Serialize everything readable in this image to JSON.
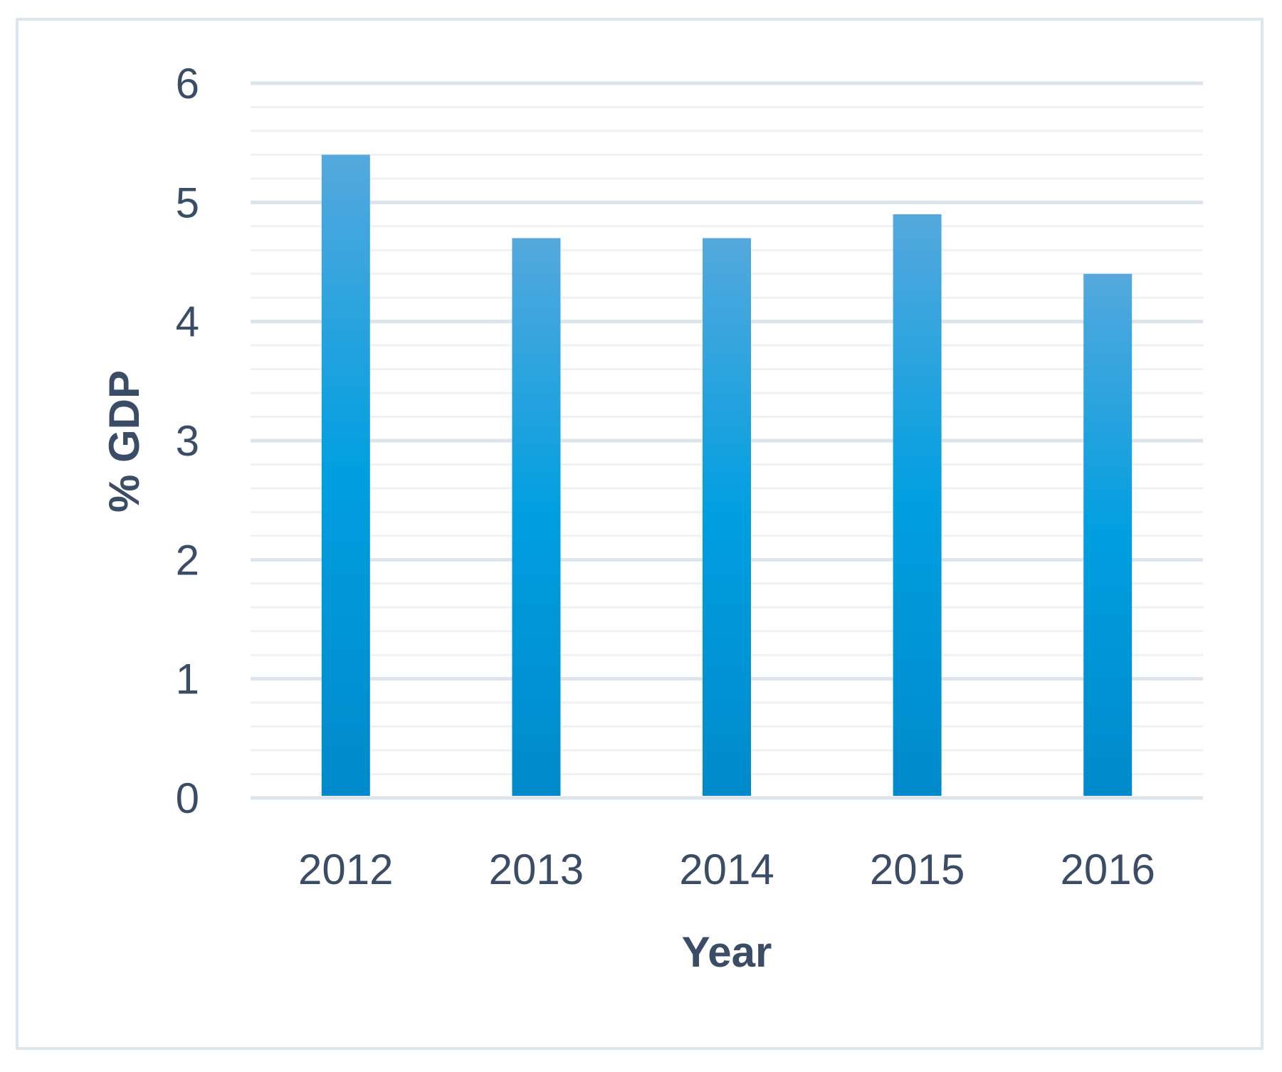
{
  "chart_data": {
    "type": "bar",
    "categories": [
      "2012",
      "2013",
      "2014",
      "2015",
      "2016"
    ],
    "values": [
      5.4,
      4.7,
      4.7,
      4.9,
      4.4
    ],
    "title": "",
    "xlabel": "Year",
    "ylabel": "% GDP",
    "ylim": [
      0,
      6
    ],
    "yticks": [
      0,
      1,
      2,
      3,
      4,
      5,
      6
    ],
    "grid": true,
    "minor_grid": true,
    "legend": "none",
    "colors": {
      "bar_top": "#55a8dd",
      "bar_mid": "#009fe0",
      "bar_bottom": "#008acb",
      "major_grid": "#dde4ec",
      "minor_grid": "#eef2f6",
      "text": "#3b4d66",
      "frame": "#dde6ef"
    }
  }
}
